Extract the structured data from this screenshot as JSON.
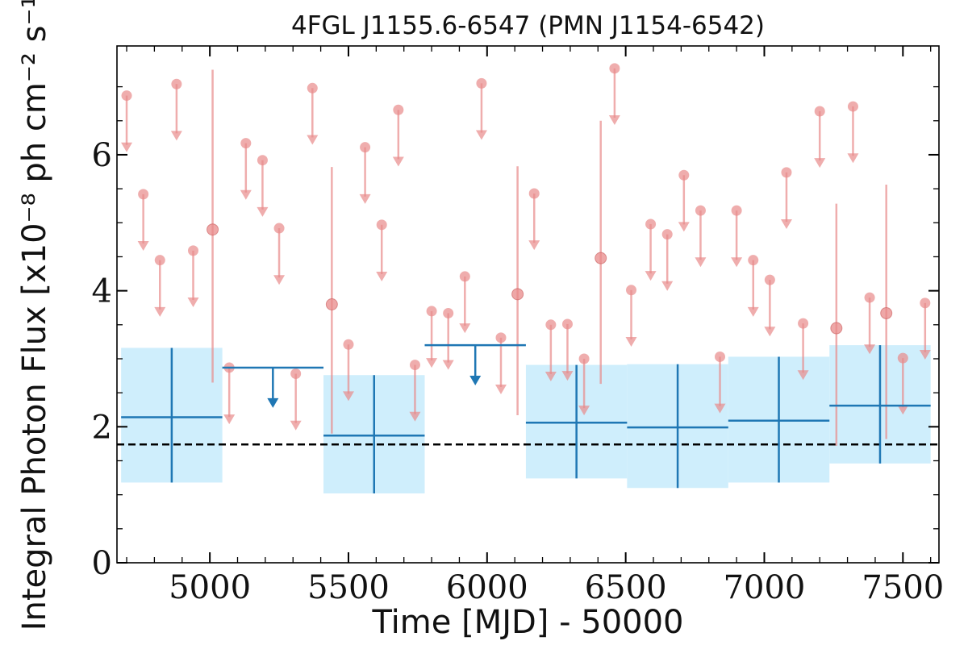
{
  "chart_data": {
    "type": "scatter",
    "title": "4FGL J1155.6-6547 (PMN J1154-6542)",
    "xlabel": "Time [MJD] - 50000",
    "ylabel": "Integral Photon Flux [x10⁻⁸ ph cm⁻² s⁻¹]",
    "xlim": [
      4665,
      7630
    ],
    "ylim": [
      0,
      7.6
    ],
    "xticks": [
      5000,
      5500,
      6000,
      6500,
      7000,
      7500
    ],
    "yticks": [
      0,
      2,
      4,
      6
    ],
    "x_tick_labels": [
      "5000",
      "5500",
      "6000",
      "6500",
      "7000",
      "7500"
    ],
    "y_tick_labels": [
      "0",
      "2",
      "4",
      "6"
    ],
    "reference_line": {
      "y": 1.74,
      "style": "dashed",
      "color": "#000000"
    },
    "series": [
      {
        "kind": "monthly_upper_limits",
        "color": "#e88a8a",
        "points": [
          {
            "x": 4700,
            "y": 6.87
          },
          {
            "x": 4760,
            "y": 5.42
          },
          {
            "x": 4820,
            "y": 4.45
          },
          {
            "x": 4880,
            "y": 7.04
          },
          {
            "x": 4940,
            "y": 4.59
          },
          {
            "x": 5070,
            "y": 2.87
          },
          {
            "x": 5130,
            "y": 6.17
          },
          {
            "x": 5190,
            "y": 5.92
          },
          {
            "x": 5250,
            "y": 4.92
          },
          {
            "x": 5310,
            "y": 2.78
          },
          {
            "x": 5370,
            "y": 6.98
          },
          {
            "x": 5500,
            "y": 3.21
          },
          {
            "x": 5560,
            "y": 6.11
          },
          {
            "x": 5620,
            "y": 4.97
          },
          {
            "x": 5680,
            "y": 6.66
          },
          {
            "x": 5740,
            "y": 2.91
          },
          {
            "x": 5800,
            "y": 3.7
          },
          {
            "x": 5860,
            "y": 3.67
          },
          {
            "x": 5920,
            "y": 4.21
          },
          {
            "x": 5980,
            "y": 7.05
          },
          {
            "x": 6050,
            "y": 3.31
          },
          {
            "x": 6170,
            "y": 5.43
          },
          {
            "x": 6230,
            "y": 3.5
          },
          {
            "x": 6290,
            "y": 3.51
          },
          {
            "x": 6350,
            "y": 3.0
          },
          {
            "x": 6460,
            "y": 7.27
          },
          {
            "x": 6520,
            "y": 4.01
          },
          {
            "x": 6590,
            "y": 4.98
          },
          {
            "x": 6650,
            "y": 4.83
          },
          {
            "x": 6710,
            "y": 5.7
          },
          {
            "x": 6770,
            "y": 5.18
          },
          {
            "x": 6840,
            "y": 3.03
          },
          {
            "x": 6900,
            "y": 5.18
          },
          {
            "x": 6960,
            "y": 4.45
          },
          {
            "x": 7020,
            "y": 4.16
          },
          {
            "x": 7080,
            "y": 5.74
          },
          {
            "x": 7140,
            "y": 3.52
          },
          {
            "x": 7200,
            "y": 6.64
          },
          {
            "x": 7320,
            "y": 6.71
          },
          {
            "x": 7380,
            "y": 3.9
          },
          {
            "x": 7500,
            "y": 3.01
          },
          {
            "x": 7580,
            "y": 3.82
          }
        ]
      },
      {
        "kind": "monthly_detections",
        "color": "#e88a8a",
        "points": [
          {
            "x": 5010,
            "y": 4.9,
            "ylow": 2.65,
            "yhigh": 7.25
          },
          {
            "x": 5440,
            "y": 3.8,
            "ylow": 1.9,
            "yhigh": 5.82
          },
          {
            "x": 6110,
            "y": 3.95,
            "ylow": 2.17,
            "yhigh": 5.83
          },
          {
            "x": 6410,
            "y": 4.48,
            "ylow": 2.63,
            "yhigh": 6.5
          },
          {
            "x": 7260,
            "y": 3.45,
            "ylow": 1.72,
            "yhigh": 5.28
          },
          {
            "x": 7440,
            "y": 3.67,
            "ylow": 1.82,
            "yhigh": 5.56
          }
        ]
      },
      {
        "kind": "yearly_detections",
        "color": "#1f77b4",
        "band_color": "#cfeefc",
        "bins": [
          {
            "x0": 4680,
            "x1": 5045,
            "y": 2.14,
            "ylow": 1.18,
            "yhigh": 3.16
          },
          {
            "x0": 5410,
            "x1": 5775,
            "y": 1.87,
            "ylow": 1.02,
            "yhigh": 2.76
          },
          {
            "x0": 6140,
            "x1": 6505,
            "y": 2.06,
            "ylow": 1.24,
            "yhigh": 2.91
          },
          {
            "x0": 6505,
            "x1": 6870,
            "y": 1.99,
            "ylow": 1.1,
            "yhigh": 2.92
          },
          {
            "x0": 6870,
            "x1": 7235,
            "y": 2.09,
            "ylow": 1.18,
            "yhigh": 3.03
          },
          {
            "x0": 7235,
            "x1": 7600,
            "y": 2.31,
            "ylow": 1.46,
            "yhigh": 3.2
          }
        ]
      },
      {
        "kind": "yearly_upper_limits",
        "color": "#1f77b4",
        "bins": [
          {
            "x0": 5045,
            "x1": 5410,
            "y": 2.87
          },
          {
            "x0": 5775,
            "x1": 6140,
            "y": 3.2
          }
        ]
      }
    ]
  }
}
